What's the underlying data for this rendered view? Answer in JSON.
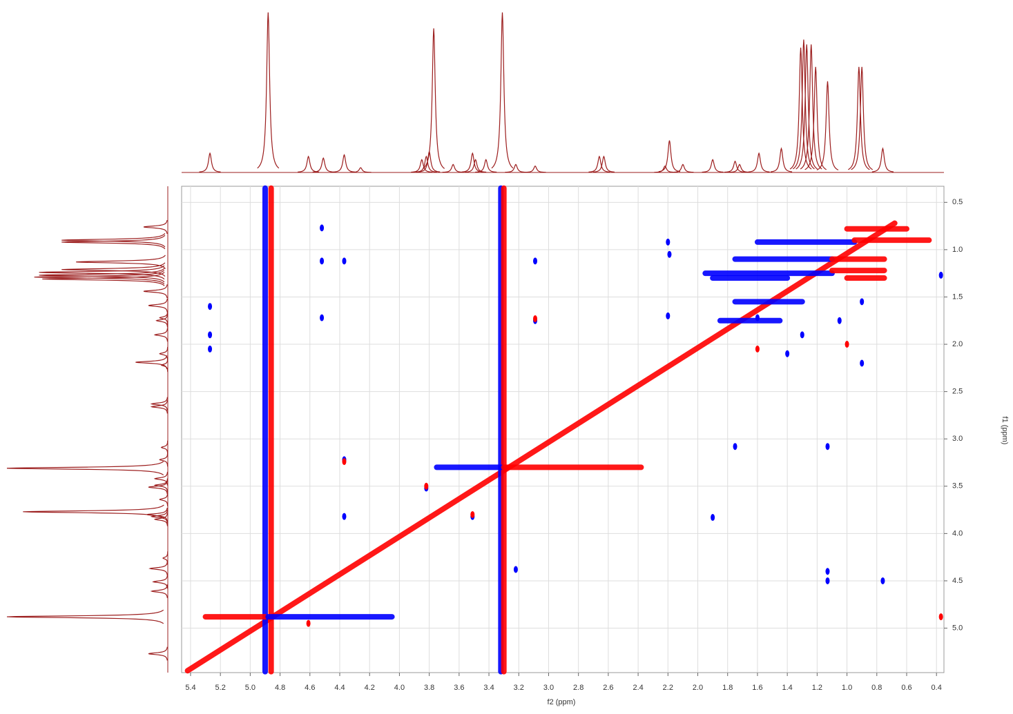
{
  "chart_data": {
    "type": "contour",
    "xlabel": "f2 (ppm)",
    "ylabel": "f1 (ppm)",
    "xlim": [
      5.46,
      0.35
    ],
    "ylim": [
      0.33,
      5.47
    ],
    "grid": true,
    "xticks": [
      5.4,
      5.2,
      {
        "value": 5,
        "label": "5.0"
      },
      4.8,
      4.6,
      4.4,
      4.2,
      {
        "value": 4,
        "label": "4.0"
      },
      3.8,
      3.6,
      3.4,
      3.2,
      {
        "value": 3,
        "label": "3.0"
      },
      2.8,
      2.6,
      2.4,
      2.2,
      {
        "value": 2,
        "label": "2.0"
      },
      1.8,
      1.6,
      1.4,
      1.2,
      {
        "value": 1,
        "label": "1.0"
      },
      0.8,
      0.6,
      0.4
    ],
    "yticks": [
      0.5,
      {
        "value": 1,
        "label": "1.0"
      },
      1.5,
      {
        "value": 2,
        "label": "2.0"
      },
      2.5,
      {
        "value": 3,
        "label": "3.0"
      },
      3.5,
      {
        "value": 4,
        "label": "4.0"
      },
      4.5,
      {
        "value": 5,
        "label": "5.0"
      }
    ],
    "projection": {
      "color": "#9b1c1c",
      "x": [
        5.27,
        4.88,
        4.61,
        4.51,
        4.37,
        4.26,
        3.85,
        3.82,
        3.8,
        3.77,
        3.64,
        3.51,
        3.49,
        3.42,
        3.31,
        3.22,
        3.09,
        2.66,
        2.63,
        2.22,
        2.19,
        2.1,
        1.9,
        1.75,
        1.72,
        1.59,
        1.44,
        1.31,
        1.29,
        1.27,
        1.24,
        1.21,
        1.13,
        0.92,
        0.9,
        0.76
      ],
      "values": [
        12,
        100,
        10,
        9,
        11,
        3,
        8,
        10,
        13,
        90,
        5,
        12,
        8,
        8,
        100,
        5,
        4,
        10,
        10,
        4,
        20,
        5,
        8,
        7,
        5,
        12,
        15,
        78,
        83,
        80,
        80,
        66,
        57,
        66,
        66,
        15
      ]
    },
    "ridges": [
      {
        "color": "#ff0000",
        "x": [
          5.42,
          0.68
        ],
        "y": [
          5.45,
          0.72
        ]
      },
      {
        "color": "#0000ff",
        "x": [
          4.9,
          4.9
        ],
        "y": [
          0.35,
          5.46
        ]
      },
      {
        "color": "#ff0000",
        "x": [
          4.86,
          4.86
        ],
        "y": [
          0.35,
          5.46
        ]
      },
      {
        "color": "#0000ff",
        "x": [
          3.32,
          3.32
        ],
        "y": [
          0.35,
          5.46
        ]
      },
      {
        "color": "#ff0000",
        "x": [
          3.3,
          3.3
        ],
        "y": [
          0.35,
          5.46
        ]
      },
      {
        "color": "#0000ff",
        "x": [
          3.75,
          3.32
        ],
        "y": [
          3.3,
          3.3
        ]
      },
      {
        "color": "#ff0000",
        "x": [
          3.3,
          2.38
        ],
        "y": [
          3.3,
          3.3
        ]
      },
      {
        "color": "#ff0000",
        "x": [
          5.3,
          4.9
        ],
        "y": [
          4.88,
          4.88
        ]
      },
      {
        "color": "#0000ff",
        "x": [
          4.88,
          4.05
        ],
        "y": [
          4.88,
          4.88
        ]
      },
      {
        "color": "#0000ff",
        "x": [
          1.6,
          0.95
        ],
        "y": [
          0.92,
          0.92
        ]
      },
      {
        "color": "#0000ff",
        "x": [
          1.75,
          1.1
        ],
        "y": [
          1.1,
          1.1
        ]
      },
      {
        "color": "#0000ff",
        "x": [
          1.95,
          1.1
        ],
        "y": [
          1.25,
          1.25
        ]
      },
      {
        "color": "#0000ff",
        "x": [
          1.9,
          1.4
        ],
        "y": [
          1.3,
          1.3
        ]
      },
      {
        "color": "#0000ff",
        "x": [
          1.75,
          1.3
        ],
        "y": [
          1.55,
          1.55
        ]
      },
      {
        "color": "#0000ff",
        "x": [
          1.85,
          1.45
        ],
        "y": [
          1.75,
          1.75
        ]
      },
      {
        "color": "#ff0000",
        "x": [
          0.95,
          0.45
        ],
        "y": [
          0.9,
          0.9
        ]
      },
      {
        "color": "#ff0000",
        "x": [
          1.0,
          0.6
        ],
        "y": [
          0.78,
          0.78
        ]
      },
      {
        "color": "#ff0000",
        "x": [
          1.1,
          0.75
        ],
        "y": [
          1.1,
          1.1
        ]
      },
      {
        "color": "#ff0000",
        "x": [
          1.1,
          0.75
        ],
        "y": [
          1.22,
          1.22
        ]
      },
      {
        "color": "#ff0000",
        "x": [
          1.0,
          0.75
        ],
        "y": [
          1.3,
          1.3
        ]
      }
    ],
    "series": [
      {
        "color": "#0000ff",
        "x": [
          4.52,
          4.52,
          4.37,
          4.52,
          5.27,
          5.27,
          5.27,
          3.09,
          3.09,
          4.37,
          4.37,
          3.51,
          3.82,
          2.2,
          2.2,
          2.19,
          1.75,
          1.13,
          1.13,
          1.13,
          0.76,
          0.9,
          0.9,
          1.05,
          1.3,
          1.4,
          1.6,
          1.9,
          0.37,
          3.22
        ],
        "y": [
          0.77,
          1.12,
          1.12,
          1.72,
          1.6,
          1.9,
          2.05,
          1.12,
          1.75,
          3.22,
          3.82,
          3.82,
          3.52,
          0.92,
          1.7,
          1.05,
          3.08,
          3.08,
          4.4,
          4.5,
          4.5,
          1.55,
          2.2,
          1.75,
          1.9,
          2.1,
          1.72,
          3.83,
          1.27,
          4.38
        ]
      },
      {
        "color": "#ff0000",
        "x": [
          4.37,
          3.51,
          3.82,
          3.09,
          0.37,
          1.0,
          1.6,
          4.61
        ],
        "y": [
          3.24,
          3.8,
          3.5,
          1.73,
          4.88,
          2.0,
          2.05,
          4.95
        ]
      }
    ]
  }
}
